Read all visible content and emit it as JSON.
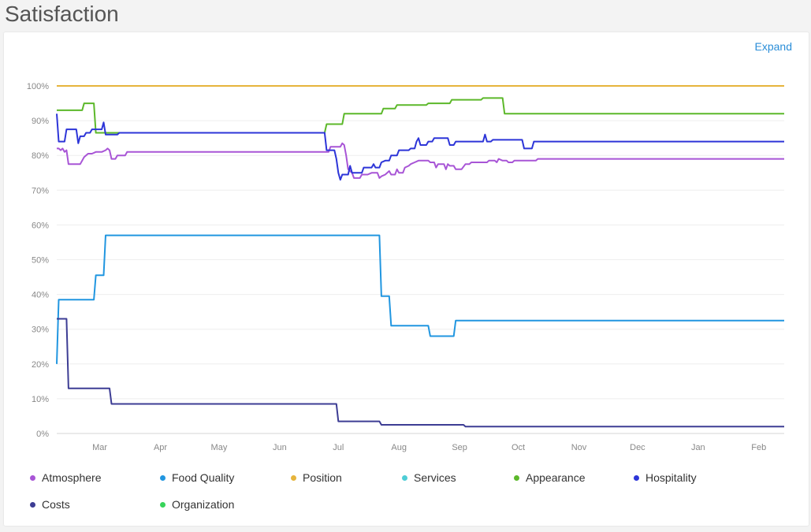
{
  "page": {
    "title": "Satisfaction"
  },
  "card": {
    "expand_label": "Expand"
  },
  "chart_data": {
    "type": "line",
    "title": "",
    "xlabel": "",
    "ylabel": "",
    "ylim": [
      0,
      100
    ],
    "y_ticks": [
      "0%",
      "10%",
      "20%",
      "30%",
      "40%",
      "50%",
      "60%",
      "70%",
      "80%",
      "90%",
      "100%"
    ],
    "x_ticks": [
      "Mar",
      "Apr",
      "May",
      "Jun",
      "Jul",
      "Aug",
      "Sep",
      "Oct",
      "Nov",
      "Dec",
      "Jan",
      "Feb"
    ],
    "x_tick_days": [
      29,
      60,
      90,
      121,
      151,
      182,
      213,
      243,
      274,
      304,
      335,
      366
    ],
    "x_range_days": [
      7,
      379
    ],
    "grid": true,
    "legend_position": "bottom",
    "series": [
      {
        "name": "Atmosphere",
        "color": "#a855d6",
        "points": [
          [
            7,
            82
          ],
          [
            8,
            82
          ],
          [
            9,
            81.5
          ],
          [
            10,
            82
          ],
          [
            11,
            81
          ],
          [
            12,
            81.5
          ],
          [
            13,
            77.5
          ],
          [
            19,
            77.5
          ],
          [
            21,
            79.5
          ],
          [
            23,
            80.5
          ],
          [
            25,
            80.5
          ],
          [
            27,
            81
          ],
          [
            30,
            81
          ],
          [
            32,
            81.5
          ],
          [
            33,
            82
          ],
          [
            34,
            81.5
          ],
          [
            35,
            79
          ],
          [
            37,
            79
          ],
          [
            38,
            80
          ],
          [
            42,
            80
          ],
          [
            43,
            81
          ],
          [
            100,
            81
          ],
          [
            146,
            81
          ],
          [
            147,
            82.5
          ],
          [
            152,
            82.5
          ],
          [
            153,
            83.5
          ],
          [
            154,
            83
          ],
          [
            155,
            80
          ],
          [
            156,
            76
          ],
          [
            158,
            75
          ],
          [
            159,
            73.5
          ],
          [
            162,
            73.5
          ],
          [
            163,
            74.5
          ],
          [
            166,
            74.5
          ],
          [
            168,
            75
          ],
          [
            171,
            75
          ],
          [
            172,
            73.5
          ],
          [
            173,
            74
          ],
          [
            175,
            74.5
          ],
          [
            177,
            75.5
          ],
          [
            178,
            74.5
          ],
          [
            180,
            74.5
          ],
          [
            181,
            76
          ],
          [
            182,
            75
          ],
          [
            184,
            75
          ],
          [
            185,
            76.5
          ],
          [
            187,
            77
          ],
          [
            188,
            77.5
          ],
          [
            190,
            78
          ],
          [
            192,
            78.5
          ],
          [
            197,
            78.5
          ],
          [
            198,
            78
          ],
          [
            200,
            78
          ],
          [
            201,
            76.5
          ],
          [
            202,
            77.5
          ],
          [
            205,
            77.5
          ],
          [
            206,
            76
          ],
          [
            207,
            77.5
          ],
          [
            208,
            77
          ],
          [
            210,
            77
          ],
          [
            211,
            76
          ],
          [
            214,
            76
          ],
          [
            216,
            77.5
          ],
          [
            218,
            77.5
          ],
          [
            219,
            78
          ],
          [
            227,
            78
          ],
          [
            228,
            78.5
          ],
          [
            231,
            78.5
          ],
          [
            232,
            78
          ],
          [
            233,
            79
          ],
          [
            235,
            78.5
          ],
          [
            237,
            78.5
          ],
          [
            238,
            78
          ],
          [
            240,
            78
          ],
          [
            241,
            78.5
          ],
          [
            252,
            78.5
          ],
          [
            253,
            79
          ],
          [
            256,
            79
          ],
          [
            257,
            79
          ],
          [
            270,
            79
          ],
          [
            379,
            79
          ]
        ]
      },
      {
        "name": "Food Quality",
        "color": "#2196e0",
        "points": [
          [
            7,
            20
          ],
          [
            8,
            38.5
          ],
          [
            26,
            38.5
          ],
          [
            27,
            45.5
          ],
          [
            31,
            45.5
          ],
          [
            32,
            57
          ],
          [
            172,
            57
          ],
          [
            173,
            39.5
          ],
          [
            177,
            39.5
          ],
          [
            178,
            31
          ],
          [
            197,
            31
          ],
          [
            198,
            28
          ],
          [
            210,
            28
          ],
          [
            211,
            32.5
          ],
          [
            379,
            32.5
          ]
        ]
      },
      {
        "name": "Position",
        "color": "#e6b43c",
        "points": [
          [
            7,
            100
          ],
          [
            379,
            100
          ]
        ]
      },
      {
        "name": "Services",
        "color": "#4ecdd6",
        "points": []
      },
      {
        "name": "Appearance",
        "color": "#5cb82a",
        "points": [
          [
            7,
            93
          ],
          [
            20,
            93
          ],
          [
            21,
            95
          ],
          [
            26,
            95
          ],
          [
            27,
            86.5
          ],
          [
            144,
            86.5
          ],
          [
            145,
            89
          ],
          [
            153,
            89
          ],
          [
            154,
            92
          ],
          [
            173,
            92
          ],
          [
            174,
            93.5
          ],
          [
            180,
            93.5
          ],
          [
            181,
            94.5
          ],
          [
            196,
            94.5
          ],
          [
            197,
            95
          ],
          [
            208,
            95
          ],
          [
            209,
            96
          ],
          [
            224,
            96
          ],
          [
            225,
            96.5
          ],
          [
            235,
            96.5
          ],
          [
            236,
            92
          ],
          [
            379,
            92
          ]
        ]
      },
      {
        "name": "Hospitality",
        "color": "#2d35d8",
        "points": [
          [
            7,
            92
          ],
          [
            8,
            84
          ],
          [
            11,
            84
          ],
          [
            12,
            87.5
          ],
          [
            17,
            87.5
          ],
          [
            18,
            83.5
          ],
          [
            19,
            85.5
          ],
          [
            21,
            85.5
          ],
          [
            22,
            86.5
          ],
          [
            24,
            86.5
          ],
          [
            25,
            87.5
          ],
          [
            30,
            87.5
          ],
          [
            31,
            89.5
          ],
          [
            32,
            86
          ],
          [
            38,
            86
          ],
          [
            39,
            86.5
          ],
          [
            144,
            86.5
          ],
          [
            145,
            81.5
          ],
          [
            149,
            81.5
          ],
          [
            150,
            79
          ],
          [
            151,
            75
          ],
          [
            152,
            73
          ],
          [
            153,
            74.5
          ],
          [
            156,
            74.5
          ],
          [
            157,
            77
          ],
          [
            158,
            75
          ],
          [
            163,
            75
          ],
          [
            164,
            76.5
          ],
          [
            168,
            76.5
          ],
          [
            169,
            77.5
          ],
          [
            170,
            76.5
          ],
          [
            172,
            76.5
          ],
          [
            173,
            78
          ],
          [
            175,
            78.5
          ],
          [
            177,
            78.5
          ],
          [
            178,
            80
          ],
          [
            181,
            80
          ],
          [
            182,
            81.5
          ],
          [
            187,
            81.5
          ],
          [
            188,
            82
          ],
          [
            190,
            82
          ],
          [
            191,
            84
          ],
          [
            192,
            85
          ],
          [
            193,
            83
          ],
          [
            196,
            83
          ],
          [
            197,
            84
          ],
          [
            199,
            84
          ],
          [
            200,
            85
          ],
          [
            207,
            85
          ],
          [
            208,
            83
          ],
          [
            210,
            83
          ],
          [
            211,
            84
          ],
          [
            225,
            84
          ],
          [
            226,
            86
          ],
          [
            227,
            84
          ],
          [
            229,
            84
          ],
          [
            230,
            84.5
          ],
          [
            245,
            84.5
          ],
          [
            246,
            82
          ],
          [
            250,
            82
          ],
          [
            251,
            84
          ],
          [
            379,
            84
          ]
        ]
      },
      {
        "name": "Costs",
        "color": "#3d3d94",
        "points": [
          [
            7,
            33
          ],
          [
            12,
            33
          ],
          [
            13,
            13
          ],
          [
            34,
            13
          ],
          [
            35,
            8.5
          ],
          [
            150,
            8.5
          ],
          [
            151,
            3.5
          ],
          [
            172,
            3.5
          ],
          [
            173,
            2.5
          ],
          [
            215,
            2.5
          ],
          [
            216,
            2
          ],
          [
            379,
            2
          ]
        ]
      },
      {
        "name": "Organization",
        "color": "#37d45a",
        "points": []
      }
    ]
  }
}
